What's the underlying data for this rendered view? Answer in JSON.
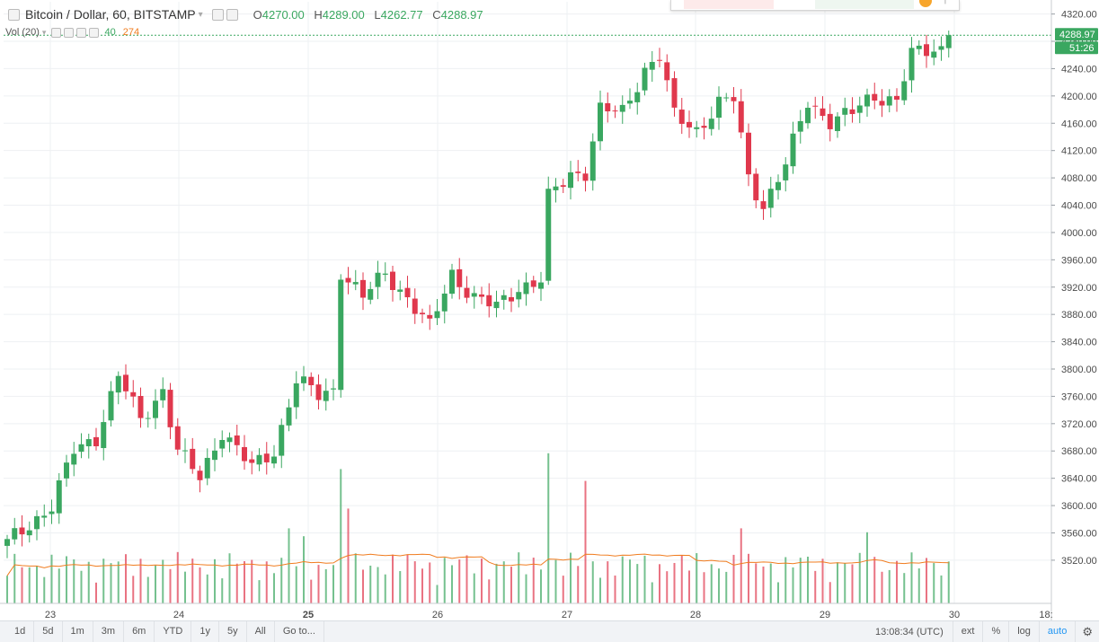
{
  "header": {
    "symbol": "Bitcoin / Dollar, 60, BITSTAMP",
    "open_key": "O",
    "open": "4270.00",
    "high_key": "H",
    "high": "4289.00",
    "low_key": "L",
    "low": "4262.77",
    "close_key": "C",
    "close": "4288.97",
    "volume_label": "Vol (20)",
    "volume_value": "40",
    "volume_ma": "274"
  },
  "price_badge": {
    "price": "4288.97",
    "countdown": "51:26"
  },
  "bottom_bar": {
    "timeframes": [
      "1d",
      "5d",
      "1m",
      "3m",
      "6m",
      "YTD",
      "1y",
      "5y",
      "All",
      "Go to..."
    ],
    "clock": "13:08:34 (UTC)",
    "options": [
      "ext",
      "%",
      "log",
      "auto"
    ]
  },
  "colors": {
    "up": "#3aa760",
    "down": "#e0384d",
    "volume_ma": "#f07c1f",
    "axis_text": "#4a4a4a",
    "grid": "#eef0f3"
  },
  "chart_data": {
    "type": "candlestick",
    "title": "Bitcoin / Dollar, 60, BITSTAMP",
    "ylim": [
      3490,
      4330
    ],
    "y_ticks": [
      4320,
      4280,
      4240,
      4200,
      4160,
      4120,
      4080,
      4040,
      4000,
      3960,
      3920,
      3880,
      3840,
      3800,
      3760,
      3720,
      3680,
      3640,
      3600,
      3560,
      3520
    ],
    "x_tick_labels": [
      "23",
      "24",
      "25",
      "26",
      "27",
      "28",
      "29",
      "30",
      "18:"
    ],
    "x_tick_bold": [
      "25"
    ],
    "grid": true,
    "last_price": 4288.97,
    "close_path": [
      {
        "x": 0,
        "y": 3545
      },
      {
        "x": 6,
        "y": 3600
      },
      {
        "x": 9,
        "y": 3680
      },
      {
        "x": 12,
        "y": 3700
      },
      {
        "x": 15,
        "y": 3790
      },
      {
        "x": 18,
        "y": 3725
      },
      {
        "x": 21,
        "y": 3770
      },
      {
        "x": 23,
        "y": 3680
      },
      {
        "x": 26,
        "y": 3640
      },
      {
        "x": 29,
        "y": 3710
      },
      {
        "x": 33,
        "y": 3655
      },
      {
        "x": 36,
        "y": 3680
      },
      {
        "x": 39,
        "y": 3785
      },
      {
        "x": 42,
        "y": 3760
      },
      {
        "x": 44,
        "y": 3770
      },
      {
        "x": 45,
        "y": 3945
      },
      {
        "x": 48,
        "y": 3905
      },
      {
        "x": 51,
        "y": 3940
      },
      {
        "x": 54,
        "y": 3905
      },
      {
        "x": 57,
        "y": 3860
      },
      {
        "x": 60,
        "y": 3940
      },
      {
        "x": 63,
        "y": 3905
      },
      {
        "x": 66,
        "y": 3890
      },
      {
        "x": 69,
        "y": 3920
      },
      {
        "x": 72,
        "y": 3930
      },
      {
        "x": 73,
        "y": 4050
      },
      {
        "x": 76,
        "y": 4085
      },
      {
        "x": 78,
        "y": 4090
      },
      {
        "x": 80,
        "y": 4180
      },
      {
        "x": 83,
        "y": 4175
      },
      {
        "x": 86,
        "y": 4240
      },
      {
        "x": 88,
        "y": 4260
      },
      {
        "x": 90,
        "y": 4170
      },
      {
        "x": 93,
        "y": 4150
      },
      {
        "x": 96,
        "y": 4190
      },
      {
        "x": 98,
        "y": 4195
      },
      {
        "x": 100,
        "y": 4080
      },
      {
        "x": 102,
        "y": 4040
      },
      {
        "x": 105,
        "y": 4100
      },
      {
        "x": 108,
        "y": 4190
      },
      {
        "x": 111,
        "y": 4165
      },
      {
        "x": 114,
        "y": 4175
      },
      {
        "x": 117,
        "y": 4200
      },
      {
        "x": 120,
        "y": 4195
      },
      {
        "x": 122,
        "y": 4260
      },
      {
        "x": 124,
        "y": 4265
      },
      {
        "x": 126,
        "y": 4270
      },
      {
        "x": 127,
        "y": 4289
      }
    ],
    "volume_spikes": [
      {
        "x": 38,
        "v": 95
      },
      {
        "x": 40,
        "v": 85
      },
      {
        "x": 45,
        "v": 170
      },
      {
        "x": 46,
        "v": 120
      },
      {
        "x": 73,
        "v": 190
      },
      {
        "x": 78,
        "v": 155
      },
      {
        "x": 99,
        "v": 95
      },
      {
        "x": 116,
        "v": 90
      }
    ]
  }
}
